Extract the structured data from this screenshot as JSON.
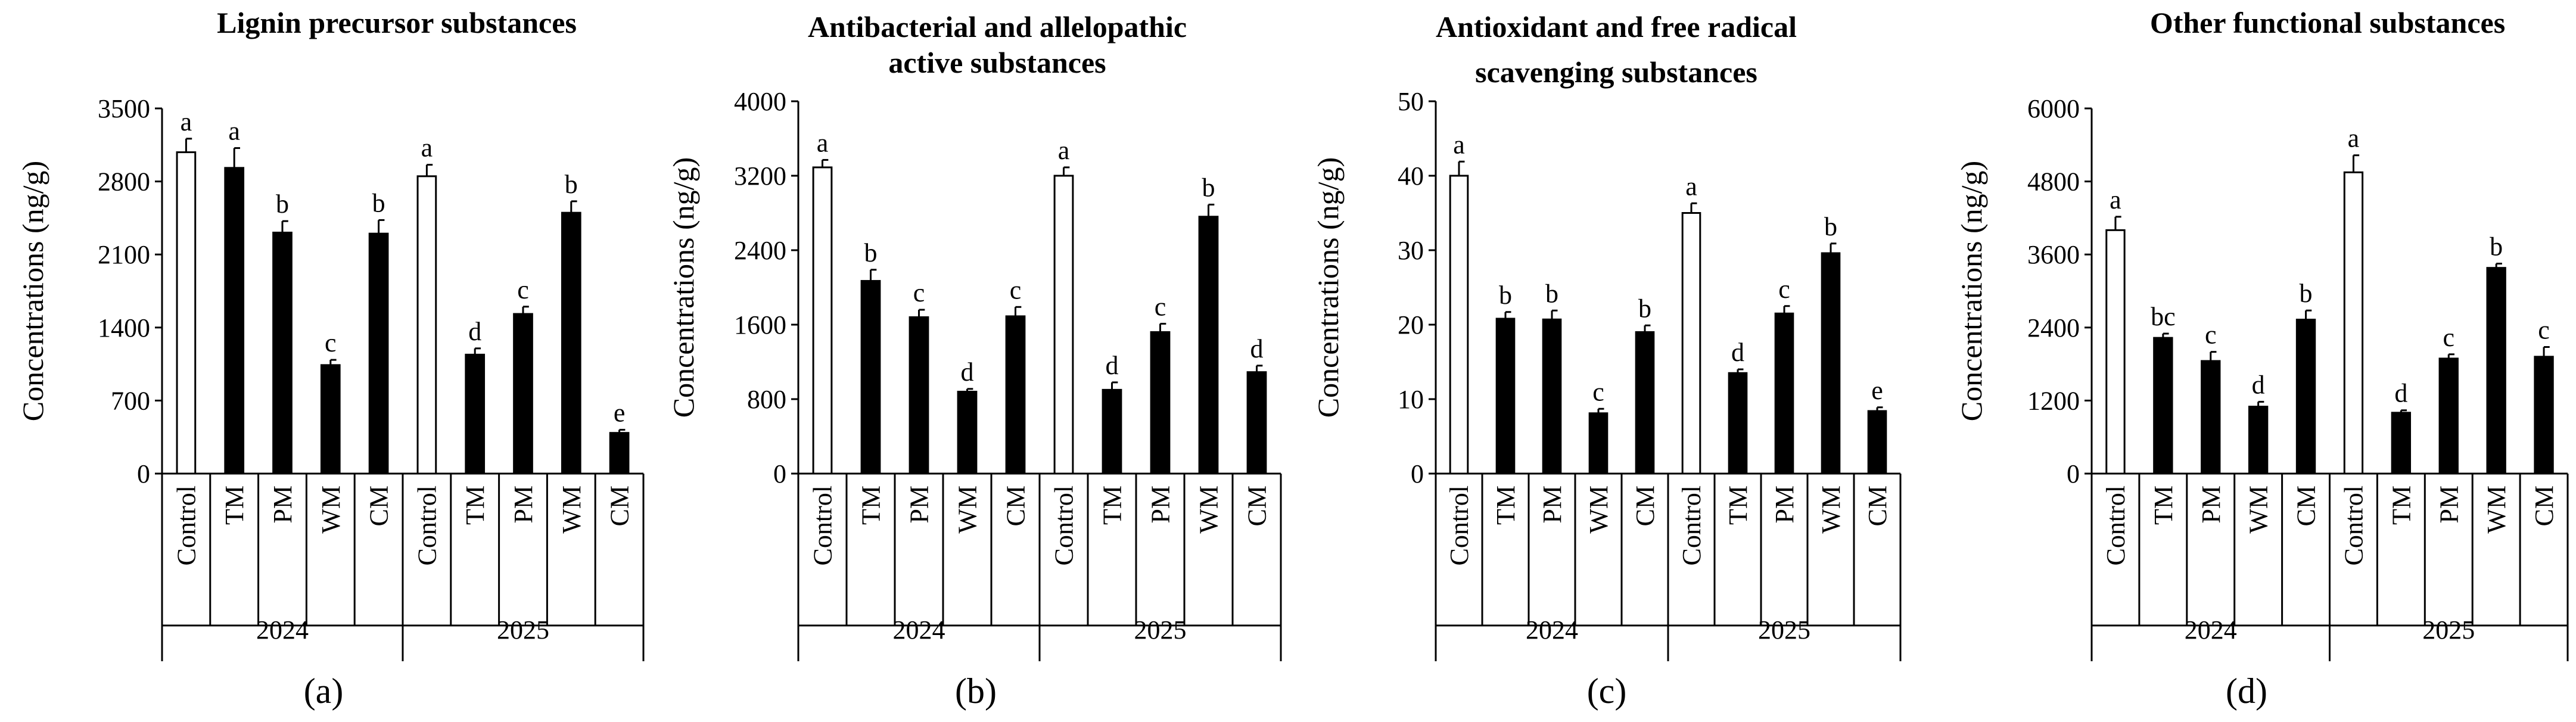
{
  "chart_data": [
    {
      "type": "bar",
      "panel_label": "(a)",
      "title": [
        "Lignin precursor substances"
      ],
      "ylabel": "Concentrations (ng/g)",
      "ylim": [
        0,
        3500
      ],
      "yticks": [
        0,
        700,
        1400,
        2100,
        2800,
        3500
      ],
      "groups": [
        {
          "label": "2024",
          "categories": [
            "Control",
            "TM",
            "PM",
            "WM",
            "CM"
          ],
          "values": [
            3080,
            2930,
            2310,
            1040,
            2300
          ],
          "errors": [
            130,
            190,
            110,
            50,
            130
          ],
          "letters": [
            "a",
            "a",
            "b",
            "c",
            "b"
          ]
        },
        {
          "label": "2025",
          "categories": [
            "Control",
            "TM",
            "PM",
            "WM",
            "CM"
          ],
          "values": [
            2850,
            1140,
            1530,
            2500,
            390
          ],
          "errors": [
            110,
            60,
            70,
            110,
            30
          ],
          "letters": [
            "a",
            "d",
            "c",
            "b",
            "e"
          ]
        }
      ]
    },
    {
      "type": "bar",
      "panel_label": "(b)",
      "title": [
        "Antibacterial and allelopathic",
        "active substances"
      ],
      "ylabel": "Concentrations (ng/g)",
      "ylim": [
        0,
        4000
      ],
      "yticks": [
        0,
        800,
        1600,
        2400,
        3200,
        4000
      ],
      "groups": [
        {
          "label": "2024",
          "categories": [
            "Control",
            "TM",
            "PM",
            "WM",
            "CM"
          ],
          "values": [
            3290,
            2070,
            1680,
            880,
            1690
          ],
          "errors": [
            80,
            120,
            80,
            30,
            100
          ],
          "letters": [
            "a",
            "b",
            "c",
            "d",
            "c"
          ]
        },
        {
          "label": "2025",
          "categories": [
            "Control",
            "TM",
            "PM",
            "WM",
            "CM"
          ],
          "values": [
            3200,
            900,
            1520,
            2760,
            1090
          ],
          "errors": [
            90,
            80,
            90,
            130,
            70
          ],
          "letters": [
            "a",
            "d",
            "c",
            "b",
            "d"
          ]
        }
      ]
    },
    {
      "type": "bar",
      "panel_label": "(c)",
      "title": [
        "Antioxidant and free radical",
        "scavenging substances"
      ],
      "ylabel": "Concentrations (ng/g)",
      "ylim": [
        0,
        50
      ],
      "yticks": [
        0,
        10,
        20,
        30,
        40,
        50
      ],
      "groups": [
        {
          "label": "2024",
          "categories": [
            "Control",
            "TM",
            "PM",
            "WM",
            "CM"
          ],
          "values": [
            40,
            20.8,
            20.7,
            8.1,
            19
          ],
          "errors": [
            1.9,
            0.9,
            1.2,
            0.6,
            0.9
          ],
          "letters": [
            "a",
            "b",
            "b",
            "c",
            "b"
          ]
        },
        {
          "label": "2025",
          "categories": [
            "Control",
            "TM",
            "PM",
            "WM",
            "CM"
          ],
          "values": [
            35,
            13.5,
            21.5,
            29.6,
            8.4
          ],
          "errors": [
            1.3,
            0.5,
            1.0,
            1.3,
            0.5
          ],
          "letters": [
            "a",
            "d",
            "c",
            "b",
            "e"
          ]
        }
      ]
    },
    {
      "type": "bar",
      "panel_label": "(d)",
      "title": [
        "Other functional substances"
      ],
      "ylabel": "Concentrations (ng/g)",
      "ylim": [
        0,
        6000
      ],
      "yticks": [
        0,
        1200,
        2400,
        3600,
        4800,
        6000
      ],
      "groups": [
        {
          "label": "2024",
          "categories": [
            "Control",
            "TM",
            "PM",
            "WM",
            "CM"
          ],
          "values": [
            4000,
            2230,
            1850,
            1100,
            2530
          ],
          "errors": [
            220,
            70,
            150,
            80,
            150
          ],
          "letters": [
            "a",
            "bc",
            "c",
            "d",
            "b"
          ]
        },
        {
          "label": "2025",
          "categories": [
            "Control",
            "TM",
            "PM",
            "WM",
            "CM"
          ],
          "values": [
            4950,
            1000,
            1890,
            3380,
            1920
          ],
          "errors": [
            280,
            40,
            70,
            70,
            160
          ],
          "letters": [
            "a",
            "d",
            "c",
            "b",
            "c"
          ]
        }
      ]
    }
  ]
}
